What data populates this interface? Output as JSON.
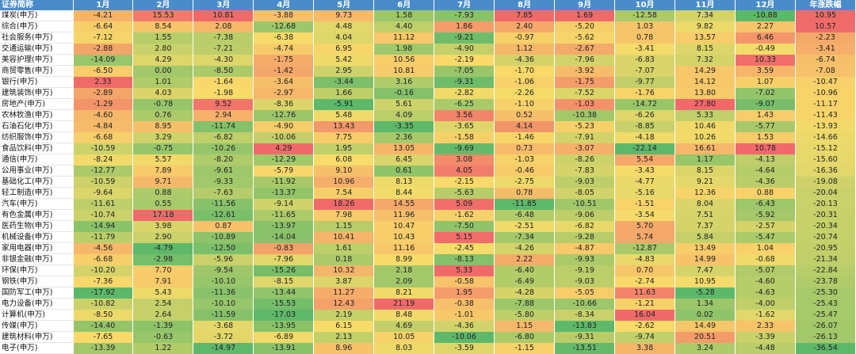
{
  "chart_data": {
    "type": "heatmap",
    "title": "",
    "header_first": "证券简称",
    "columns": [
      "1月",
      "2月",
      "3月",
      "4月",
      "5月",
      "6月",
      "7月",
      "8月",
      "9月",
      "10月",
      "11月",
      "12月",
      "年涨跌幅"
    ],
    "rows": [
      {
        "name": "煤炭(申万)",
        "values": [
          -4.21,
          15.53,
          10.81,
          -3.88,
          9.73,
          1.58,
          -7.93,
          7.85,
          1.69,
          -12.58,
          7.34,
          -10.88,
          10.95
        ]
      },
      {
        "name": "综合(申万)",
        "values": [
          -6.64,
          8.54,
          2.08,
          -12.68,
          4.48,
          4.4,
          1.86,
          2.4,
          -5.2,
          1.03,
          9.82,
          2.27,
          10.57
        ]
      },
      {
        "name": "社会服务(申万)",
        "values": [
          -7.12,
          1.55,
          -7.38,
          -6.38,
          4.04,
          11.12,
          -9.21,
          -0.97,
          -5.62,
          0.78,
          13.57,
          6.46,
          -2.23
        ]
      },
      {
        "name": "交通运输(申万)",
        "values": [
          -2.88,
          2.8,
          -7.21,
          -4.74,
          6.95,
          1.98,
          -4.9,
          1.12,
          -2.67,
          -3.41,
          8.15,
          -0.49,
          -3.41
        ]
      },
      {
        "name": "美容护理(申万)",
        "values": [
          -14.09,
          4.29,
          -4.3,
          -1.75,
          5.42,
          10.56,
          -2.19,
          -4.36,
          -7.96,
          -6.83,
          7.32,
          10.33,
          -6.74
        ]
      },
      {
        "name": "商贸零售(申万)",
        "values": [
          -6.5,
          0.0,
          -8.5,
          -1.42,
          2.95,
          10.81,
          -7.05,
          -1.7,
          -3.92,
          -7.07,
          14.29,
          3.59,
          -7.08
        ]
      },
      {
        "name": "银行(申万)",
        "values": [
          2.33,
          1.01,
          -1.64,
          -3.64,
          -3.44,
          3.16,
          -9.31,
          -1.06,
          -1.75,
          -9.77,
          14.12,
          1.07,
          -10.47
        ]
      },
      {
        "name": "建筑装饰(申万)",
        "values": [
          -2.89,
          4.03,
          -1.98,
          -2.97,
          1.66,
          -0.16,
          -2.82,
          -2.26,
          -7.52,
          -1.76,
          13.8,
          -7.02,
          -10.96
        ]
      },
      {
        "name": "房地产(申万)",
        "values": [
          -1.29,
          -0.78,
          9.52,
          -8.36,
          -5.91,
          5.61,
          -6.25,
          -1.1,
          -1.03,
          -14.72,
          27.8,
          -9.07,
          -11.17
        ]
      },
      {
        "name": "农林牧渔(申万)",
        "values": [
          -4.6,
          0.76,
          2.94,
          -12.76,
          5.48,
          4.09,
          3.56,
          0.52,
          -10.38,
          -6.26,
          5.33,
          1.43,
          -11.43
        ]
      },
      {
        "name": "石油石化(申万)",
        "values": [
          -4.84,
          8.95,
          -11.74,
          -4.9,
          13.43,
          -3.35,
          -3.65,
          4.14,
          -5.23,
          -8.85,
          10.46,
          -5.77,
          -13.93
        ]
      },
      {
        "name": "纺织服饰(申万)",
        "values": [
          -6.68,
          3.29,
          -6.82,
          -10.06,
          7.75,
          2.36,
          -1.58,
          -1.46,
          -7.91,
          -4.18,
          10.26,
          1.53,
          -14.66
        ]
      },
      {
        "name": "食品饮料(申万)",
        "values": [
          -10.59,
          -0.75,
          -10.26,
          4.29,
          1.95,
          13.05,
          -9.69,
          0.73,
          -3.07,
          -22.14,
          16.61,
          10.78,
          -15.12
        ]
      },
      {
        "name": "通信(申万)",
        "values": [
          -8.24,
          5.57,
          -8.2,
          -12.29,
          6.08,
          6.45,
          3.08,
          -1.03,
          -8.26,
          5.54,
          1.17,
          -4.13,
          -15.6
        ]
      },
      {
        "name": "公用事业(申万)",
        "values": [
          -12.77,
          7.89,
          -9.61,
          -5.79,
          9.1,
          0.61,
          4.05,
          -0.46,
          -7.83,
          -3.43,
          8.15,
          -4.64,
          -16.36
        ]
      },
      {
        "name": "基础化工(申万)",
        "values": [
          -10.59,
          9.71,
          -9.33,
          -11.92,
          10.96,
          8.13,
          -2.15,
          -2.75,
          -9.03,
          -4.77,
          9.21,
          -4.36,
          -19.08
        ]
      },
      {
        "name": "轻工制造(申万)",
        "values": [
          -9.64,
          0.88,
          -7.63,
          -13.37,
          7.54,
          8.44,
          -5.63,
          0.78,
          -8.05,
          -5.16,
          12.36,
          0.88,
          -20.04
        ]
      },
      {
        "name": "汽车(申万)",
        "values": [
          -11.61,
          0.55,
          -11.56,
          -9.14,
          18.26,
          14.55,
          5.09,
          -11.85,
          -10.51,
          -1.51,
          8.04,
          -6.43,
          -20.13
        ]
      },
      {
        "name": "有色金属(申万)",
        "values": [
          -10.74,
          17.18,
          -12.61,
          -11.65,
          7.98,
          11.96,
          -1.62,
          -6.48,
          -9.06,
          -3.54,
          7.51,
          -5.92,
          -20.31
        ]
      },
      {
        "name": "医药生物(申万)",
        "values": [
          -14.94,
          3.98,
          0.87,
          -13.97,
          1.15,
          10.47,
          -7.5,
          -2.51,
          -6.82,
          5.7,
          7.37,
          -2.57,
          -20.34
        ]
      },
      {
        "name": "机械设备(申万)",
        "values": [
          -11.79,
          2.9,
          -10.89,
          -14.04,
          10.41,
          10.43,
          5.15,
          -7.34,
          -9.28,
          5.74,
          5.84,
          -5.47,
          -20.74
        ]
      },
      {
        "name": "家用电器(申万)",
        "values": [
          -4.56,
          -4.79,
          -12.5,
          -0.83,
          1.61,
          11.16,
          -2.45,
          -4.26,
          -4.87,
          -12.87,
          13.49,
          1.04,
          -20.95
        ]
      },
      {
        "name": "非银金融(申万)",
        "values": [
          -6.68,
          -2.98,
          -5.96,
          -7.96,
          0.18,
          8.99,
          -8.13,
          2.22,
          -9.93,
          -4.83,
          14.99,
          -0.68,
          -21.34
        ]
      },
      {
        "name": "环保(申万)",
        "values": [
          -10.2,
          7.7,
          -9.54,
          -15.26,
          10.32,
          2.18,
          5.33,
          -6.4,
          -9.19,
          0.7,
          7.47,
          -5.07,
          -22.84
        ]
      },
      {
        "name": "钢铁(申万)",
        "values": [
          -7.36,
          7.91,
          -10.1,
          -8.15,
          3.87,
          2.09,
          -0.58,
          -6.49,
          -9.03,
          -2.74,
          10.95,
          -4.6,
          -23.78
        ]
      },
      {
        "name": "国防军工(申万)",
        "values": [
          -17.92,
          5.43,
          -11.36,
          -13.44,
          11.27,
          8.21,
          1.95,
          -4.28,
          -5.05,
          11.63,
          -5.28,
          -4.63,
          -25.3
        ]
      },
      {
        "name": "电力设备(申万)",
        "values": [
          -10.82,
          2.54,
          -10.1,
          -15.53,
          12.43,
          21.19,
          -0.38,
          -7.88,
          -10.66,
          -1.21,
          1.34,
          -4.0,
          -25.43
        ]
      },
      {
        "name": "计算机(申万)",
        "values": [
          -8.5,
          2.64,
          -11.59,
          -17.03,
          2.19,
          8.48,
          -1.01,
          -5.8,
          -8.34,
          16.04,
          0.02,
          -1.62,
          -25.47
        ]
      },
      {
        "name": "传媒(申万)",
        "values": [
          -14.4,
          -1.39,
          -3.68,
          -13.95,
          6.15,
          4.69,
          -4.36,
          1.15,
          -13.83,
          -2.62,
          14.49,
          2.33,
          -26.07
        ]
      },
      {
        "name": "建筑材料(申万)",
        "values": [
          -7.65,
          -0.63,
          -3.72,
          -6.89,
          2.13,
          10.05,
          -10.06,
          -6.8,
          -9.31,
          -9.74,
          20.51,
          -3.39,
          -26.13
        ]
      },
      {
        "name": "电子(申万)",
        "values": [
          -13.39,
          1.22,
          -14.97,
          -13.91,
          8.96,
          8.03,
          -3.59,
          -1.15,
          -13.51,
          3.38,
          3.24,
          -4.48,
          -36.54
        ]
      }
    ],
    "colors": {
      "low": "#5eb86a",
      "mid": "#f8dc6a",
      "high": "#f06a6a",
      "header": "#4a8cc9"
    }
  }
}
